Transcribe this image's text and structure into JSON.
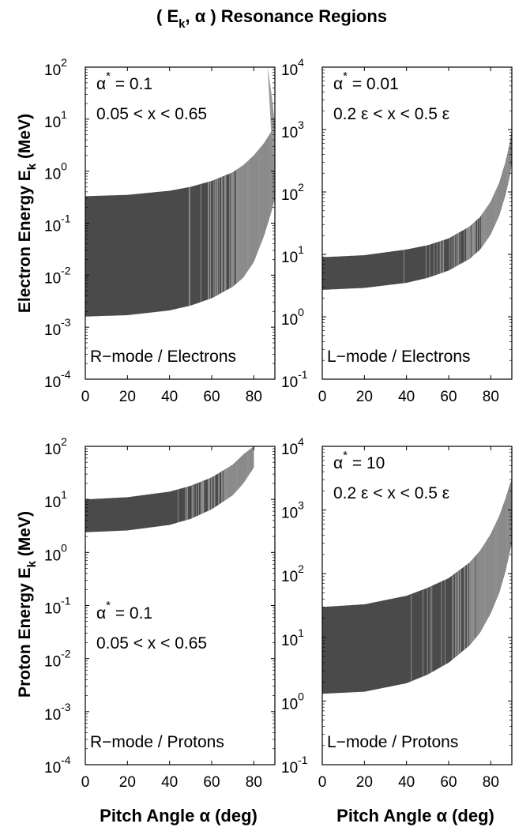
{
  "figure_title": "( E",
  "figure_title_sub": "k",
  "figure_title_rest": ", α ) Resonance Regions",
  "ylabels": [
    {
      "main": "Electron Energy E",
      "sub": "k",
      "rest": " (MeV)"
    },
    {
      "main": "Proton Energy E",
      "sub": "k",
      "rest": " (MeV)"
    }
  ],
  "xlabel": "Pitch Angle α (deg)",
  "colors": {
    "band_dark": "#4a4a4a",
    "band_light": "#9a9a9a",
    "axes": "#000000",
    "background": "#ffffff"
  },
  "chart_data": [
    {
      "type": "area",
      "panel": "top-left",
      "yscale": "log",
      "xlim": [
        0,
        90
      ],
      "ylim": [
        0.0001,
        100
      ],
      "xticks": [
        "0",
        "20",
        "40",
        "60",
        "80"
      ],
      "yticks": [
        {
          "m": "10",
          "e": "2"
        },
        {
          "m": "10",
          "e": "1"
        },
        {
          "m": "10",
          "e": "0"
        },
        {
          "m": "10",
          "e": "-1"
        },
        {
          "m": "10",
          "e": "-2"
        },
        {
          "m": "10",
          "e": "-3"
        },
        {
          "m": "10",
          "e": "-4"
        }
      ],
      "annotation_alpha": {
        "pre": "α",
        "sup": "*",
        "post": " = 0.1"
      },
      "annotation_range": "0.05 < x < 0.65",
      "mode_label": "R−mode / Electrons",
      "x": [
        0,
        20,
        40,
        50,
        60,
        70,
        75,
        80,
        85,
        88,
        90
      ],
      "upper": [
        0.33,
        0.35,
        0.42,
        0.5,
        0.65,
        0.95,
        1.3,
        2.0,
        3.5,
        5.5,
        8
      ],
      "lower": [
        0.0016,
        0.0017,
        0.0021,
        0.0026,
        0.0036,
        0.006,
        0.009,
        0.018,
        0.06,
        0.15,
        0.3
      ],
      "spike": {
        "x": [
          86.5,
          88,
          89,
          90
        ],
        "y": [
          100,
          40,
          20,
          8
        ]
      }
    },
    {
      "type": "area",
      "panel": "top-right",
      "yscale": "log",
      "xlim": [
        0,
        90
      ],
      "ylim": [
        0.1,
        10000
      ],
      "xticks": [
        "0",
        "20",
        "40",
        "60",
        "80"
      ],
      "yticks": [
        {
          "m": "10",
          "e": "4"
        },
        {
          "m": "10",
          "e": "3"
        },
        {
          "m": "10",
          "e": "2"
        },
        {
          "m": "10",
          "e": "1"
        },
        {
          "m": "10",
          "e": "0"
        },
        {
          "m": "10",
          "e": "-1"
        }
      ],
      "annotation_alpha": {
        "pre": "α",
        "sup": "*",
        "post": " = 0.01"
      },
      "annotation_range": "0.2 ε < x < 0.5 ε",
      "mode_label": "L−mode / Electrons",
      "x": [
        0,
        20,
        40,
        50,
        60,
        70,
        75,
        80,
        84,
        87,
        89,
        90
      ],
      "upper": [
        9,
        9.7,
        12,
        14,
        18,
        28,
        40,
        70,
        140,
        300,
        600,
        1000
      ],
      "lower": [
        2.7,
        2.9,
        3.5,
        4.2,
        5.5,
        8.5,
        12,
        21,
        42,
        90,
        180,
        300
      ]
    },
    {
      "type": "area",
      "panel": "bottom-left",
      "yscale": "log",
      "xlim": [
        0,
        90
      ],
      "ylim": [
        0.0001,
        100
      ],
      "xticks": [
        "0",
        "20",
        "40",
        "60",
        "80"
      ],
      "yticks": [
        {
          "m": "10",
          "e": "2"
        },
        {
          "m": "10",
          "e": "1"
        },
        {
          "m": "10",
          "e": "0"
        },
        {
          "m": "10",
          "e": "-1"
        },
        {
          "m": "10",
          "e": "-2"
        },
        {
          "m": "10",
          "e": "-3"
        },
        {
          "m": "10",
          "e": "-4"
        }
      ],
      "annotation_alpha": {
        "pre": "α",
        "sup": "*",
        "post": " = 0.1"
      },
      "annotation_range": "0.05 < x < 0.65",
      "mode_label": "R−mode / Protons",
      "x": [
        0,
        20,
        40,
        50,
        60,
        70,
        75,
        80
      ],
      "upper": [
        10,
        11,
        14,
        18,
        26,
        45,
        70,
        100
      ],
      "lower": [
        2.4,
        2.6,
        3.3,
        4.3,
        6.5,
        12,
        20,
        40
      ]
    },
    {
      "type": "area",
      "panel": "bottom-right",
      "yscale": "log",
      "xlim": [
        0,
        90
      ],
      "ylim": [
        0.1,
        10000
      ],
      "xticks": [
        "0",
        "20",
        "40",
        "60",
        "80"
      ],
      "yticks": [
        {
          "m": "10",
          "e": "4"
        },
        {
          "m": "10",
          "e": "3"
        },
        {
          "m": "10",
          "e": "2"
        },
        {
          "m": "10",
          "e": "1"
        },
        {
          "m": "10",
          "e": "0"
        },
        {
          "m": "10",
          "e": "-1"
        }
      ],
      "annotation_alpha": {
        "pre": "α",
        "sup": "*",
        "post": " = 10"
      },
      "annotation_range": "0.2 ε < x < 0.5 ε",
      "mode_label": "L−mode / Protons",
      "x": [
        0,
        20,
        40,
        50,
        60,
        70,
        75,
        80,
        84,
        87,
        89,
        90
      ],
      "upper": [
        30,
        33,
        45,
        60,
        85,
        150,
        230,
        420,
        800,
        1500,
        2500,
        3000
      ],
      "lower": [
        1.3,
        1.4,
        1.9,
        2.6,
        4.0,
        7.5,
        12,
        24,
        50,
        110,
        220,
        300
      ]
    }
  ]
}
